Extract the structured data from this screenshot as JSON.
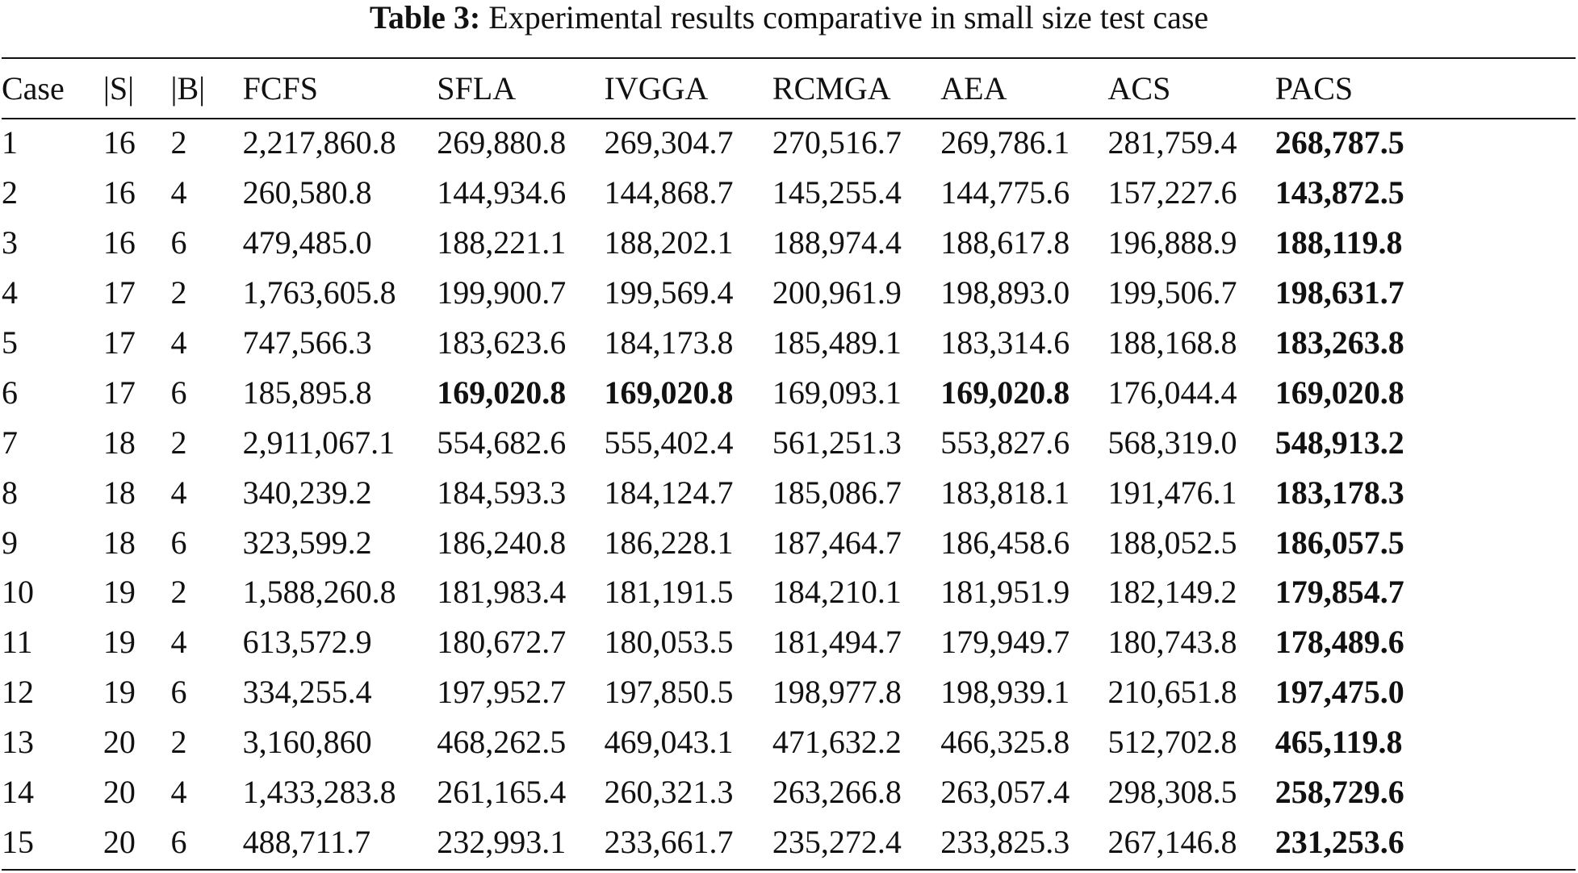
{
  "caption": {
    "label": "Table 3:",
    "text": "Experimental results comparative in small size test case"
  },
  "table": {
    "headers": [
      "Case",
      "|S|",
      "|B|",
      "FCFS",
      "SFLA",
      "IVGGA",
      "RCMGA",
      "AEA",
      "ACS",
      "PACS"
    ],
    "rows": [
      [
        "1",
        "16",
        "2",
        "2,217,860.8",
        "269,880.8",
        "269,304.7",
        "270,516.7",
        "269,786.1",
        "281,759.4",
        "268,787.5"
      ],
      [
        "2",
        "16",
        "4",
        "260,580.8",
        "144,934.6",
        "144,868.7",
        "145,255.4",
        "144,775.6",
        "157,227.6",
        "143,872.5"
      ],
      [
        "3",
        "16",
        "6",
        "479,485.0",
        "188,221.1",
        "188,202.1",
        "188,974.4",
        "188,617.8",
        "196,888.9",
        "188,119.8"
      ],
      [
        "4",
        "17",
        "2",
        "1,763,605.8",
        "199,900.7",
        "199,569.4",
        "200,961.9",
        "198,893.0",
        "199,506.7",
        "198,631.7"
      ],
      [
        "5",
        "17",
        "4",
        "747,566.3",
        "183,623.6",
        "184,173.8",
        "185,489.1",
        "183,314.6",
        "188,168.8",
        "183,263.8"
      ],
      [
        "6",
        "17",
        "6",
        "185,895.8",
        "169,020.8",
        "169,020.8",
        "169,093.1",
        "169,020.8",
        "176,044.4",
        "169,020.8"
      ],
      [
        "7",
        "18",
        "2",
        "2,911,067.1",
        "554,682.6",
        "555,402.4",
        "561,251.3",
        "553,827.6",
        "568,319.0",
        "548,913.2"
      ],
      [
        "8",
        "18",
        "4",
        "340,239.2",
        "184,593.3",
        "184,124.7",
        "185,086.7",
        "183,818.1",
        "191,476.1",
        "183,178.3"
      ],
      [
        "9",
        "18",
        "6",
        "323,599.2",
        "186,240.8",
        "186,228.1",
        "187,464.7",
        "186,458.6",
        "188,052.5",
        "186,057.5"
      ],
      [
        "10",
        "19",
        "2",
        "1,588,260.8",
        "181,983.4",
        "181,191.5",
        "184,210.1",
        "181,951.9",
        "182,149.2",
        "179,854.7"
      ],
      [
        "11",
        "19",
        "4",
        "613,572.9",
        "180,672.7",
        "180,053.5",
        "181,494.7",
        "179,949.7",
        "180,743.8",
        "178,489.6"
      ],
      [
        "12",
        "19",
        "6",
        "334,255.4",
        "197,952.7",
        "197,850.5",
        "198,977.8",
        "198,939.1",
        "210,651.8",
        "197,475.0"
      ],
      [
        "13",
        "20",
        "2",
        "3,160,860",
        "468,262.5",
        "469,043.1",
        "471,632.2",
        "466,325.8",
        "512,702.8",
        "465,119.8"
      ],
      [
        "14",
        "20",
        "4",
        "1,433,283.8",
        "261,165.4",
        "260,321.3",
        "263,266.8",
        "263,057.4",
        "298,308.5",
        "258,729.6"
      ],
      [
        "15",
        "20",
        "6",
        "488,711.7",
        "232,993.1",
        "233,661.7",
        "235,272.4",
        "233,825.3",
        "267,146.8",
        "231,253.6"
      ]
    ],
    "bold_cells": [
      [
        0,
        9
      ],
      [
        1,
        9
      ],
      [
        2,
        9
      ],
      [
        3,
        9
      ],
      [
        4,
        9
      ],
      [
        5,
        4
      ],
      [
        5,
        5
      ],
      [
        5,
        7
      ],
      [
        5,
        9
      ],
      [
        6,
        9
      ],
      [
        7,
        9
      ],
      [
        8,
        9
      ],
      [
        9,
        9
      ],
      [
        10,
        9
      ],
      [
        11,
        9
      ],
      [
        12,
        9
      ],
      [
        13,
        9
      ],
      [
        14,
        9
      ]
    ]
  }
}
